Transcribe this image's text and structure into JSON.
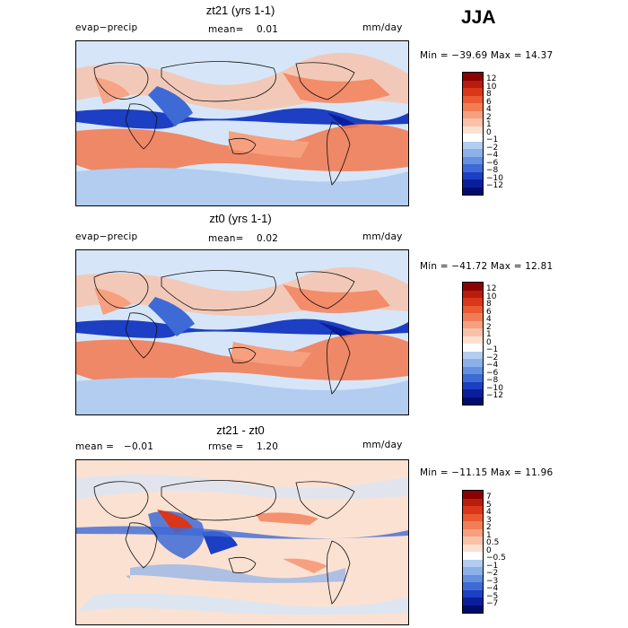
{
  "season": "JJA",
  "panels": [
    {
      "title": "zt21 (yrs 1-1)",
      "left_label": "evap−precip",
      "center_label": "mean=",
      "center_value": "0.01",
      "units": "mm/day",
      "stats": "Min = −39.69 Max =  14.37",
      "colorbar_labels": [
        "12",
        "10",
        "8",
        "6",
        "4",
        "2",
        "1",
        "0",
        "−1",
        "−2",
        "−4",
        "−6",
        "−8",
        "−10",
        "−12"
      ]
    },
    {
      "title": "zt0 (yrs 1-1)",
      "left_label": "evap−precip",
      "center_label": "mean=",
      "center_value": "0.02",
      "units": "mm/day",
      "stats": "Min = −41.72 Max =  12.81",
      "colorbar_labels": [
        "12",
        "10",
        "8",
        "6",
        "4",
        "2",
        "1",
        "0",
        "−1",
        "−2",
        "−4",
        "−6",
        "−8",
        "−10",
        "−12"
      ]
    },
    {
      "title": "zt21 - zt0",
      "left_label": "mean =",
      "left_value": "−0.01",
      "center_label": "rmse =",
      "center_value": "1.20",
      "units": "mm/day",
      "stats": "Min = −11.15 Max =  11.96",
      "colorbar_labels": [
        "7",
        "5",
        "4",
        "3",
        "2",
        "1",
        "0.5",
        "0",
        "−0.5",
        "−1",
        "−2",
        "−3",
        "−4",
        "−5",
        "−7"
      ]
    }
  ],
  "colors": {
    "scale": [
      "#8b0000",
      "#b81c0c",
      "#d9361a",
      "#ea5a33",
      "#f27d55",
      "#f6a07f",
      "#f9c2a8",
      "#fbe1d2",
      "#ffffff",
      "#d6e6f8",
      "#b3cdf0",
      "#8cb1ea",
      "#6590e0",
      "#3e6ad6",
      "#1c3fc4",
      "#0a1e9c",
      "#000c6b"
    ],
    "land_outline": "#111111"
  },
  "chart_data": [
    {
      "type": "heatmap",
      "title": "zt21 (yrs 1-1)",
      "variable": "evap−precip",
      "units": "mm/day",
      "mean": 0.01,
      "min": -39.69,
      "max": 14.37,
      "colorbar_levels": [
        -12,
        -10,
        -8,
        -6,
        -4,
        -2,
        -1,
        0,
        1,
        2,
        4,
        6,
        8,
        10,
        12
      ]
    },
    {
      "type": "heatmap",
      "title": "zt0 (yrs 1-1)",
      "variable": "evap−precip",
      "units": "mm/day",
      "mean": 0.02,
      "min": -41.72,
      "max": 12.81,
      "colorbar_levels": [
        -12,
        -10,
        -8,
        -6,
        -4,
        -2,
        -1,
        0,
        1,
        2,
        4,
        6,
        8,
        10,
        12
      ]
    },
    {
      "type": "heatmap",
      "title": "zt21 - zt0",
      "units": "mm/day",
      "mean": -0.01,
      "rmse": 1.2,
      "min": -11.15,
      "max": 11.96,
      "colorbar_levels": [
        -7,
        -5,
        -4,
        -3,
        -2,
        -1,
        -0.5,
        0,
        0.5,
        1,
        2,
        3,
        4,
        5,
        7
      ]
    }
  ]
}
